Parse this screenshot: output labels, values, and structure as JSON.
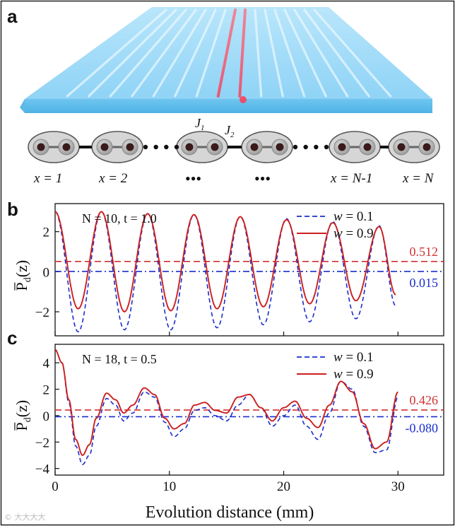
{
  "panel_labels": [
    "a",
    "b",
    "c"
  ],
  "schematic": {
    "coupling_labels": {
      "j1": "J",
      "j1_sub": "1",
      "j2": "J",
      "j2_sub": "2"
    },
    "site_labels": [
      "x = 1",
      "x = 2",
      "x = N-1",
      "x = N"
    ],
    "ellipsis": "•••"
  },
  "shared": {
    "xlabel": "Evolution distance (mm)",
    "xticks": [
      0,
      10,
      20,
      30
    ],
    "ylabel": "P̅",
    "ylabel_sub": "d",
    "ylabel_tail": "(z)"
  },
  "colors": {
    "w01": "#1a2ecc",
    "w09": "#cc1f1f",
    "mean01": "#1a2ecc",
    "mean09": "#d03030"
  },
  "watermark": "© 大大大大",
  "chart_data": [
    {
      "type": "line",
      "panel": "b",
      "annotation": "N = 10, t = 1.0",
      "xlim": [
        0,
        34
      ],
      "ylim": [
        -3.2,
        3.4
      ],
      "yticks": [
        -2,
        0,
        2
      ],
      "legend": "top-right",
      "series": [
        {
          "name": "w = 0.1",
          "style": "dashed",
          "color": "#1a2ecc",
          "peaks_x": [
            0,
            4.05,
            8.1,
            12.15,
            16.2,
            20.25,
            24.3,
            28.35
          ],
          "peaks_y": [
            3.0,
            3.0,
            2.9,
            2.85,
            2.75,
            2.65,
            2.5,
            2.3
          ],
          "troughs_x": [
            2.02,
            6.07,
            10.12,
            14.17,
            18.22,
            22.27,
            26.32
          ],
          "troughs_y": [
            -3.0,
            -2.9,
            -2.9,
            -2.8,
            -2.65,
            -2.5,
            -2.35
          ],
          "end": [
            29.8,
            -1.7
          ]
        },
        {
          "name": "w = 0.9",
          "style": "solid",
          "color": "#cc1f1f",
          "peaks_x": [
            0,
            4.05,
            8.1,
            12.15,
            16.2,
            20.25,
            24.3,
            28.35
          ],
          "peaks_y": [
            3.0,
            3.0,
            2.9,
            2.85,
            2.75,
            2.6,
            2.45,
            2.25
          ],
          "troughs_x": [
            2.02,
            6.07,
            10.12,
            14.17,
            18.22,
            22.27,
            26.32
          ],
          "troughs_y": [
            -1.85,
            -2.0,
            -1.95,
            -1.85,
            -1.75,
            -1.6,
            -1.45
          ],
          "end": [
            29.8,
            -1.15
          ]
        }
      ],
      "means": [
        {
          "label": "0.512",
          "value": 0.512,
          "color": "#d03030",
          "style": "dashed"
        },
        {
          "label": "0.015",
          "value": 0.015,
          "color": "#1a2ecc",
          "style": "dashdot"
        }
      ]
    },
    {
      "type": "line",
      "panel": "c",
      "annotation": "N = 18, t = 0.5",
      "xlim": [
        0,
        34
      ],
      "ylim": [
        -4.5,
        5.4
      ],
      "yticks": [
        -4,
        -2,
        0,
        2,
        4
      ],
      "legend": "top-right",
      "series": [
        {
          "name": "w = 0.1",
          "style": "dashed",
          "color": "#1a2ecc",
          "x": [
            0,
            0.6,
            1.2,
            1.8,
            2.4,
            3.0,
            3.6,
            4.5,
            5.3,
            6.0,
            6.8,
            7.8,
            8.7,
            9.6,
            10.4,
            11.3,
            12.2,
            13.1,
            14.0,
            15.0,
            16.0,
            17.0,
            18.0,
            19.0,
            20.0,
            21.0,
            22.0,
            23.0,
            24.0,
            25.0,
            26.0,
            27.0,
            28.0,
            29.0,
            30.0
          ],
          "y": [
            5.0,
            4.0,
            1.0,
            -2.3,
            -3.7,
            -3.0,
            -0.8,
            1.3,
            0.8,
            -0.4,
            0.2,
            1.8,
            1.4,
            -0.5,
            -1.6,
            -1.0,
            0.4,
            0.6,
            0.0,
            -0.4,
            0.8,
            1.6,
            0.6,
            -0.8,
            0.0,
            0.8,
            -0.8,
            -1.8,
            0.2,
            2.6,
            2.0,
            -0.8,
            -2.8,
            -2.6,
            1.4
          ]
        },
        {
          "name": "w = 0.9",
          "style": "solid",
          "color": "#cc1f1f",
          "x": [
            0,
            0.6,
            1.2,
            1.8,
            2.4,
            3.0,
            3.6,
            4.5,
            5.3,
            6.0,
            6.8,
            7.8,
            8.7,
            9.6,
            10.4,
            11.3,
            12.2,
            13.1,
            14.0,
            15.0,
            16.0,
            17.0,
            18.0,
            19.0,
            20.0,
            21.0,
            22.0,
            23.0,
            24.0,
            25.0,
            26.0,
            27.0,
            28.0,
            29.0,
            30.0
          ],
          "y": [
            5.0,
            4.0,
            1.2,
            -1.8,
            -3.0,
            -2.2,
            -0.2,
            1.7,
            1.2,
            0.2,
            0.8,
            2.1,
            1.6,
            -0.2,
            -1.0,
            -0.6,
            0.8,
            1.0,
            0.4,
            0.2,
            1.4,
            1.6,
            0.6,
            -0.4,
            0.6,
            1.1,
            -0.2,
            -0.9,
            0.8,
            2.6,
            1.8,
            -0.6,
            -2.5,
            -2.0,
            1.8
          ]
        }
      ],
      "means": [
        {
          "label": "0.426",
          "value": 0.426,
          "color": "#d03030",
          "style": "dashed"
        },
        {
          "label": "-0.080",
          "value": -0.08,
          "color": "#1a2ecc",
          "style": "dashdot"
        }
      ]
    }
  ]
}
